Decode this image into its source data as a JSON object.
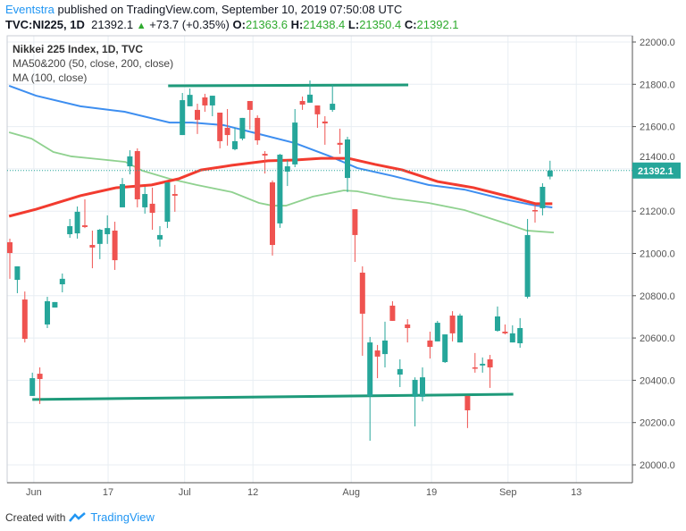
{
  "header": {
    "author": "Eventstra",
    "published_text": "published on TradingView.com, September 10, 2019 07:50:08 UTC",
    "symbol": "TVC:NI225, 1D",
    "last": "21392.1",
    "change": "+73.7 (+0.35%)",
    "o_label": "O:",
    "o": "21363.6",
    "h_label": "H:",
    "h": "21438.4",
    "l_label": "L:",
    "l": "21350.4",
    "c_label": "C:",
    "c": "21392.1"
  },
  "legend": {
    "title": "Nikkei 225 Index, 1D, TVC",
    "ma1": "MA50&200 (50, close, 200, close)",
    "ma2": "MA (100, close)"
  },
  "footer": {
    "created_with": "Created with",
    "brand": "TradingView"
  },
  "colors": {
    "up": "#26a69a",
    "down": "#ef5350",
    "ma50": "#8fd18f",
    "ma200": "#f23b2f",
    "ma100": "#3d8ef0",
    "trend": "#1e9a7a",
    "grid": "#e8eef3"
  },
  "chart_data": {
    "type": "candlestick",
    "ylim": [
      19900,
      22100
    ],
    "y_ticks": [
      "20000.0",
      "20200.0",
      "20400.0",
      "20600.0",
      "20800.0",
      "21000.0",
      "21200.0",
      "21400.0",
      "21600.0",
      "21800.0",
      "22000.0"
    ],
    "x_ticks": [
      {
        "label": "Jun",
        "index": 3.2
      },
      {
        "label": "17",
        "index": 13.1
      },
      {
        "label": "Jul",
        "index": 23.3
      },
      {
        "label": "12",
        "index": 32.4
      },
      {
        "label": "Aug",
        "index": 45.5
      },
      {
        "label": "19",
        "index": 56.2
      },
      {
        "label": "Sep",
        "index": 66.4
      },
      {
        "label": "13",
        "index": 75.5
      }
    ],
    "last_price_label": "21392.1",
    "last_price": 21392.1,
    "candles": [
      [
        21053,
        21070,
        20880,
        21002
      ],
      [
        20875,
        20939,
        20812,
        20939
      ],
      [
        20782,
        20820,
        20579,
        20596
      ],
      [
        20326,
        20436,
        20326,
        20410
      ],
      [
        20431,
        20461,
        20288,
        20406
      ],
      [
        20664,
        20795,
        20647,
        20774
      ],
      [
        20744,
        20770,
        20744,
        20770
      ],
      [
        20854,
        20905,
        20816,
        20880
      ],
      [
        21091,
        21163,
        21074,
        21129
      ],
      [
        21095,
        21222,
        21070,
        21197
      ],
      [
        21133,
        21256,
        21120,
        21125
      ],
      [
        21040,
        21108,
        20930,
        21028
      ],
      [
        21045,
        21116,
        20973,
        21112
      ],
      [
        21091,
        21180,
        21045,
        21120
      ],
      [
        21108,
        21150,
        20922,
        20968
      ],
      [
        21218,
        21357,
        21218,
        21328
      ],
      [
        21412,
        21488,
        21374,
        21459
      ],
      [
        21484,
        21497,
        21218,
        21256
      ],
      [
        21218,
        21315,
        21188,
        21281
      ],
      [
        21235,
        21311,
        21112,
        21192
      ],
      [
        21066,
        21129,
        21032,
        21087
      ],
      [
        21150,
        21336,
        21120,
        21336
      ],
      [
        21281,
        21324,
        21197,
        21273
      ],
      [
        21560,
        21759,
        21560,
        21725
      ],
      [
        21696,
        21780,
        21696,
        21750
      ],
      [
        21679,
        21708,
        21565,
        21632
      ],
      [
        21738,
        21755,
        21670,
        21700
      ],
      [
        21700,
        21746,
        21649,
        21746
      ],
      [
        21666,
        21666,
        21497,
        21531
      ],
      [
        21594,
        21683,
        21510,
        21560
      ],
      [
        21493,
        21594,
        21488,
        21531
      ],
      [
        21543,
        21641,
        21535,
        21641
      ],
      [
        21721,
        21721,
        21586,
        21679
      ],
      [
        21641,
        21653,
        21514,
        21535
      ],
      [
        21471,
        21484,
        21378,
        21463
      ],
      [
        21336,
        21345,
        20990,
        21040
      ],
      [
        21142,
        21471,
        21121,
        21467
      ],
      [
        21387,
        21442,
        21319,
        21412
      ],
      [
        21421,
        21683,
        21408,
        21619
      ],
      [
        21721,
        21742,
        21679,
        21704
      ],
      [
        21713,
        21818,
        21713,
        21751
      ],
      [
        21700,
        21700,
        21594,
        21658
      ],
      [
        21624,
        21649,
        21514,
        21615
      ],
      [
        21679,
        21797,
        21670,
        21708
      ],
      [
        21523,
        21590,
        21471,
        21514
      ],
      [
        21357,
        21552,
        21290,
        21539
      ],
      [
        21209,
        21209,
        20960,
        21087
      ],
      [
        20909,
        20939,
        20516,
        20715
      ],
      [
        20326,
        20605,
        20114,
        20579
      ],
      [
        20541,
        20567,
        20410,
        20512
      ],
      [
        20524,
        20677,
        20461,
        20588
      ],
      [
        20753,
        20774,
        20681,
        20681
      ],
      [
        20427,
        20499,
        20368,
        20453
      ],
      [
        20664,
        20689,
        20579,
        20647
      ],
      [
        20322,
        20414,
        20182,
        20402
      ],
      [
        20322,
        20461,
        20300,
        20414
      ],
      [
        20588,
        20630,
        20503,
        20558
      ],
      [
        20584,
        20681,
        20584,
        20672
      ],
      [
        20486,
        20617,
        20482,
        20617
      ],
      [
        20706,
        20727,
        20584,
        20622
      ],
      [
        20579,
        20715,
        20579,
        20706
      ],
      [
        20326,
        20326,
        20174,
        20258
      ],
      [
        20461,
        20529,
        20436,
        20456
      ],
      [
        20470,
        20508,
        20436,
        20478
      ],
      [
        20499,
        20520,
        20364,
        20461
      ],
      [
        20634,
        20749,
        20630,
        20702
      ],
      [
        20630,
        20664,
        20617,
        20622
      ],
      [
        20579,
        20660,
        20579,
        20622
      ],
      [
        20575,
        20694,
        20554,
        20647
      ],
      [
        20795,
        21163,
        20787,
        21087
      ],
      [
        21205,
        21230,
        21146,
        21201
      ],
      [
        21214,
        21332,
        21180,
        21315
      ],
      [
        21363.6,
        21438.4,
        21350.4,
        21392.1
      ]
    ],
    "series": [
      {
        "name": "MA100",
        "color_key": "ma100",
        "points": [
          [
            -0.1,
            21793
          ],
          [
            3.5,
            21746
          ],
          [
            9.4,
            21696
          ],
          [
            15.3,
            21670
          ],
          [
            21.3,
            21619
          ],
          [
            24.3,
            21619
          ],
          [
            28.5,
            21607
          ],
          [
            33.2,
            21565
          ],
          [
            38.0,
            21522
          ],
          [
            42.7,
            21459
          ],
          [
            46.3,
            21404
          ],
          [
            51.1,
            21366
          ],
          [
            55.8,
            21324
          ],
          [
            60.6,
            21302
          ],
          [
            65.4,
            21260
          ],
          [
            70.1,
            21226
          ],
          [
            72.3,
            21218
          ]
        ]
      },
      {
        "name": "MA50",
        "color_key": "ma50",
        "points": [
          [
            -0.1,
            21573
          ],
          [
            2.9,
            21543
          ],
          [
            5.8,
            21480
          ],
          [
            8.2,
            21459
          ],
          [
            11.8,
            21446
          ],
          [
            15.4,
            21433
          ],
          [
            17.7,
            21391
          ],
          [
            21.3,
            21353
          ],
          [
            24.9,
            21324
          ],
          [
            29.6,
            21290
          ],
          [
            33.2,
            21239
          ],
          [
            35,
            21226
          ],
          [
            36.8,
            21226
          ],
          [
            40.4,
            21269
          ],
          [
            44.5,
            21298
          ],
          [
            46.3,
            21294
          ],
          [
            51.1,
            21260
          ],
          [
            55.8,
            21239
          ],
          [
            60.6,
            21205
          ],
          [
            65.4,
            21150
          ],
          [
            68.9,
            21108
          ],
          [
            72.5,
            21099
          ]
        ]
      },
      {
        "name": "MA200",
        "color_key": "ma200",
        "points": [
          [
            -0.1,
            21176
          ],
          [
            3.5,
            21209
          ],
          [
            9.4,
            21273
          ],
          [
            14.2,
            21311
          ],
          [
            18.9,
            21324
          ],
          [
            22.5,
            21353
          ],
          [
            25.5,
            21395
          ],
          [
            29.6,
            21417
          ],
          [
            34.4,
            21438
          ],
          [
            38.0,
            21442
          ],
          [
            41.5,
            21450
          ],
          [
            45.1,
            21450
          ],
          [
            48.7,
            21421
          ],
          [
            52.3,
            21395
          ],
          [
            57.0,
            21340
          ],
          [
            61.8,
            21311
          ],
          [
            66.5,
            21269
          ],
          [
            70.1,
            21235
          ],
          [
            72.3,
            21235
          ]
        ]
      }
    ],
    "trendlines": [
      {
        "name": "resistance",
        "from": [
          21.1,
          21793
        ],
        "to": [
          53.1,
          21797
        ]
      },
      {
        "name": "support",
        "from": [
          3.0,
          20309
        ],
        "to": [
          67.1,
          20334
        ]
      }
    ]
  }
}
